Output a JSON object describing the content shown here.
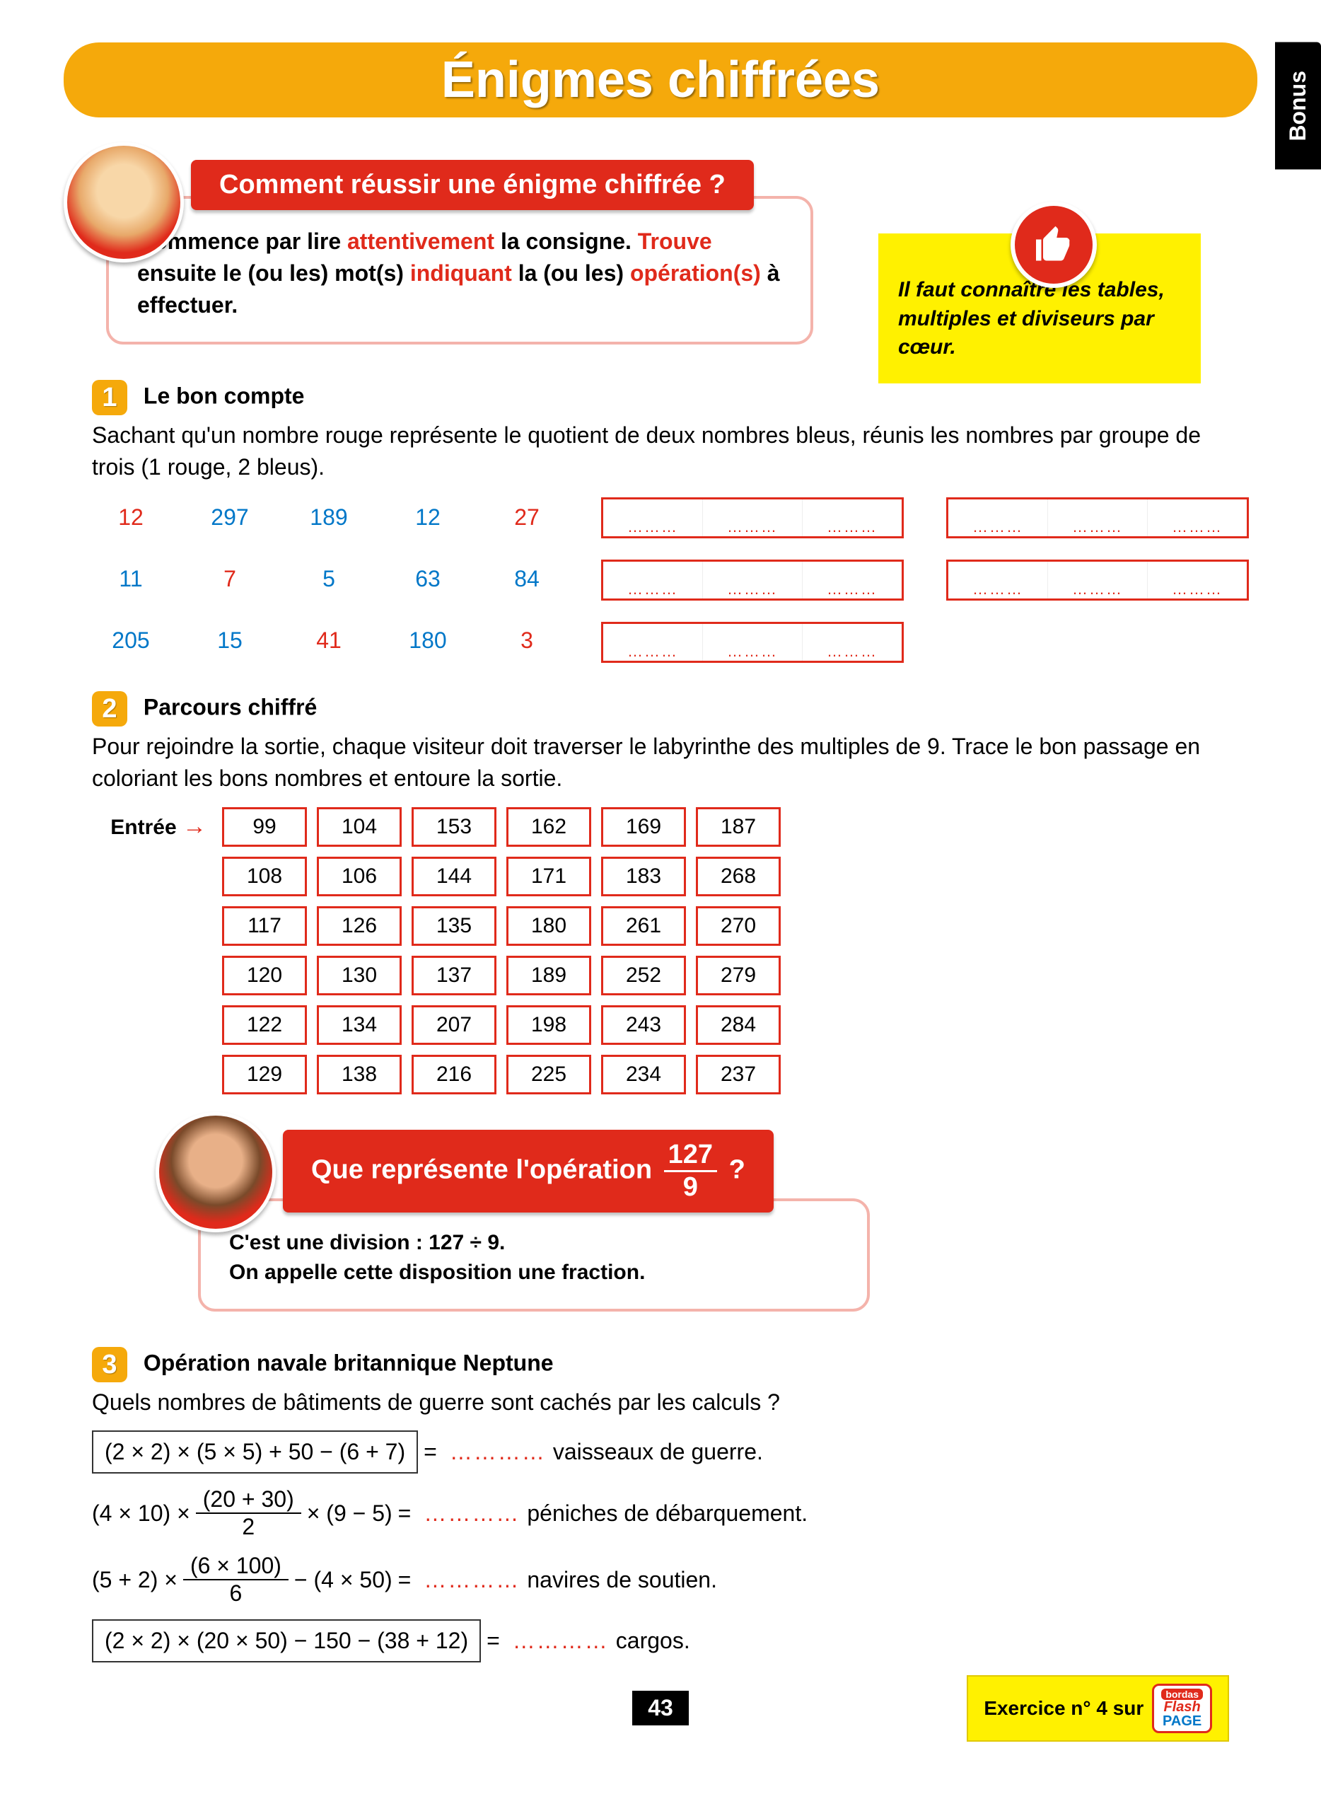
{
  "page": {
    "title": "Énigmes chiffrées",
    "bonus_label": "Bonus",
    "page_number": "43",
    "footer_exercise": "Exercice n° 4 sur",
    "footer_brand": {
      "top": "bordas",
      "mid": "Flash",
      "bot": "PAGE"
    }
  },
  "tip": {
    "text": "Il faut connaître les tables, multiples et diviseurs par cœur."
  },
  "speech1": {
    "banner": "Comment réussir une énigme chiffrée ?",
    "body_parts": [
      "Commence par lire ",
      "attentivement",
      " la consigne. ",
      "Trouve",
      " ensuite le (ou les) mot(s) ",
      "indiquant",
      " la (ou les) ",
      "opération(s)",
      " à effectuer."
    ]
  },
  "ex1": {
    "num": "1",
    "title": "Le bon compte",
    "text": "Sachant qu'un nombre rouge représente le quotient de deux nombres bleus, réunis les nombres par groupe de trois (1 rouge, 2 bleus).",
    "numbers": [
      {
        "v": "12",
        "c": "red"
      },
      {
        "v": "297",
        "c": "blue"
      },
      {
        "v": "189",
        "c": "blue"
      },
      {
        "v": "12",
        "c": "blue"
      },
      {
        "v": "27",
        "c": "red"
      },
      {
        "v": "11",
        "c": "blue"
      },
      {
        "v": "7",
        "c": "red"
      },
      {
        "v": "5",
        "c": "blue"
      },
      {
        "v": "63",
        "c": "blue"
      },
      {
        "v": "84",
        "c": "blue"
      },
      {
        "v": "205",
        "c": "blue"
      },
      {
        "v": "15",
        "c": "blue"
      },
      {
        "v": "41",
        "c": "red"
      },
      {
        "v": "180",
        "c": "blue"
      },
      {
        "v": "3",
        "c": "red"
      }
    ]
  },
  "ex2": {
    "num": "2",
    "title": "Parcours chiffré",
    "text": "Pour rejoindre la sortie, chaque visiteur doit traverser le labyrinthe des multiples de 9. Trace le bon passage en coloriant les bons nombres et entoure la sortie.",
    "entry": "Entrée",
    "grid": [
      [
        "99",
        "104",
        "153",
        "162",
        "169",
        "187"
      ],
      [
        "108",
        "106",
        "144",
        "171",
        "183",
        "268"
      ],
      [
        "117",
        "126",
        "135",
        "180",
        "261",
        "270"
      ],
      [
        "120",
        "130",
        "137",
        "189",
        "252",
        "279"
      ],
      [
        "122",
        "134",
        "207",
        "198",
        "243",
        "284"
      ],
      [
        "129",
        "138",
        "216",
        "225",
        "234",
        "237"
      ]
    ]
  },
  "speech2": {
    "banner_pre": "Que représente l'opération ",
    "banner_frac_top": "127",
    "banner_frac_bot": "9",
    "banner_post": " ?",
    "body_l1": "C'est une division : 127 ÷ 9.",
    "body_l2": "On appelle cette disposition une fraction."
  },
  "ex3": {
    "num": "3",
    "title": "Opération navale britannique Neptune",
    "text": "Quels nombres de bâtiments de guerre sont cachés par les calculs ?",
    "lines": [
      {
        "boxed": true,
        "expr": "(2 × 2) × (5 × 5) + 50 − (6 + 7)",
        "label": "vaisseaux de guerre."
      },
      {
        "boxed": false,
        "expr_pre": "(4 × 10) × ",
        "frac_t": "(20 + 30)",
        "frac_b": "2",
        "expr_post": " × (9 − 5)",
        "label": "péniches de débarquement."
      },
      {
        "boxed": false,
        "expr_pre": "(5 + 2) × ",
        "frac_t": "(6 × 100)",
        "frac_b": "6",
        "expr_post": " − (4 × 50)",
        "label": "navires de soutien."
      },
      {
        "boxed": true,
        "expr": "(2 × 2) × (20 × 50) − 150 − (38 + 12)",
        "label": "cargos."
      }
    ]
  },
  "colors": {
    "orange": "#f5a90b",
    "red": "#e02a1b",
    "blue": "#0077c8",
    "yellow": "#fff100"
  }
}
